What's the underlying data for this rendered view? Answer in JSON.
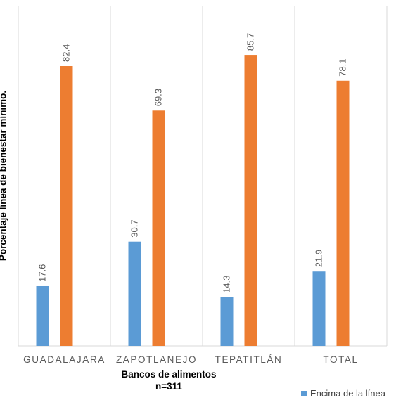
{
  "chart_data": {
    "type": "bar",
    "categories": [
      "GUADALAJARA",
      "ZAPOTLANEJO",
      "TEPATITLÁN",
      "TOTAL"
    ],
    "series": [
      {
        "name": "Encima de la línea",
        "values": [
          17.6,
          30.7,
          14.3,
          21.9
        ],
        "color": "#5B9BD5"
      },
      {
        "values": [
          82.4,
          69.3,
          85.7,
          78.1
        ],
        "color": "#ED7D31"
      }
    ],
    "ylabel": "Porcentaje línea de bienestar mínimo.",
    "xlabel": "Bancos de alimentos",
    "xlabel_sub": "n=311",
    "ylim": [
      0,
      100
    ],
    "legend_position": "bottom-right",
    "grid": "vertical separators"
  }
}
